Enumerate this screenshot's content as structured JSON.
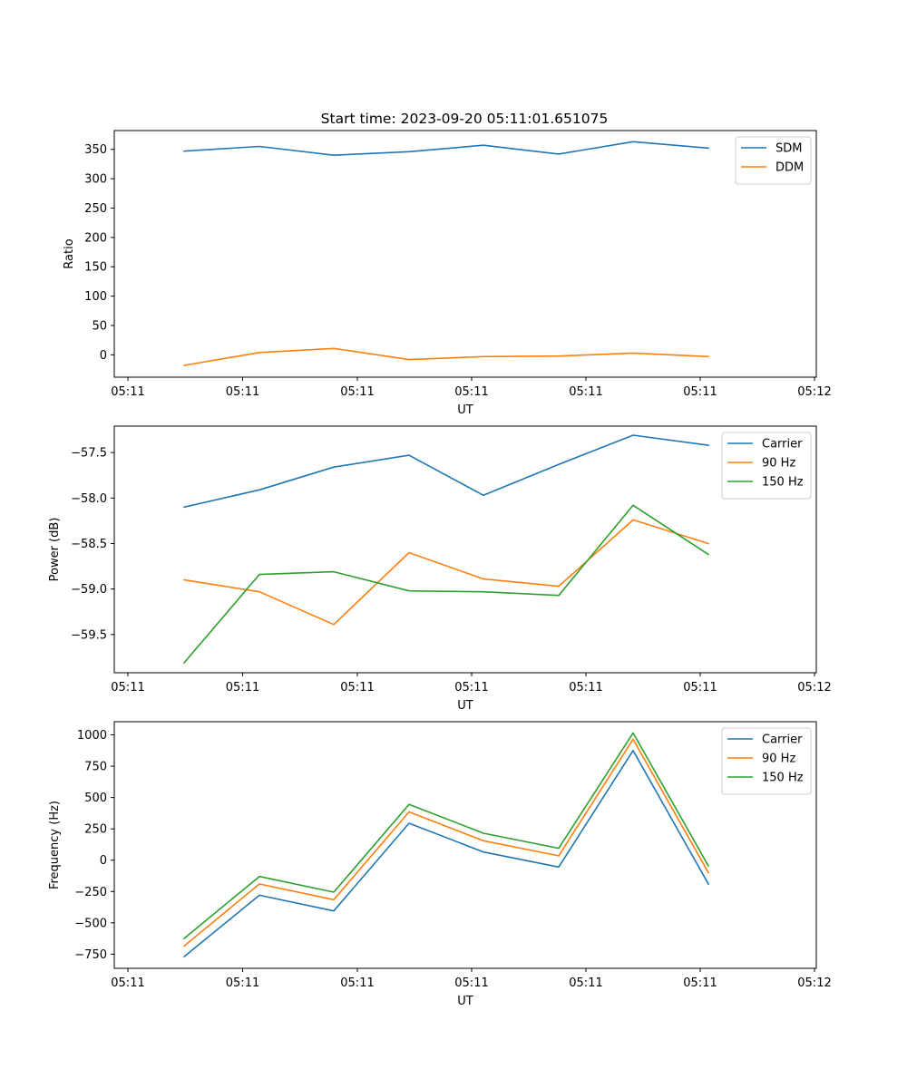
{
  "chart_data": {
    "type": "line",
    "title": "Start time: 2023-09-20 05:11:01.651075",
    "x_ticks": [
      "05:11",
      "05:11",
      "05:11",
      "05:11",
      "05:11",
      "05:11",
      "05:12"
    ],
    "panels": [
      {
        "id": "ratio",
        "xlabel": "UT",
        "ylabel": "Ratio",
        "ylim": [
          -38,
          382
        ],
        "yticks": [
          {
            "value": 0,
            "label": "0"
          },
          {
            "value": 50,
            "label": "50"
          },
          {
            "value": 100,
            "label": "100"
          },
          {
            "value": 150,
            "label": "150"
          },
          {
            "value": 200,
            "label": "200"
          },
          {
            "value": 250,
            "label": "250"
          },
          {
            "value": 300,
            "label": "300"
          },
          {
            "value": 350,
            "label": "350"
          }
        ],
        "legend": "top-right",
        "series": [
          {
            "name": "SDM",
            "color": "#1f77b4",
            "values": [
              347,
              355,
              340,
              346,
              357,
              342,
              363,
              352
            ]
          },
          {
            "name": "DDM",
            "color": "#ff7f0e",
            "values": [
              -18,
              4,
              11,
              -8,
              -3,
              -2,
              3,
              -3
            ]
          }
        ]
      },
      {
        "id": "power",
        "xlabel": "UT",
        "ylabel": "Power (dB)",
        "ylim": [
          -59.92,
          -57.21
        ],
        "yticks": [
          {
            "value": -59.5,
            "label": "−59.5"
          },
          {
            "value": -59.0,
            "label": "−59.0"
          },
          {
            "value": -58.5,
            "label": "−58.5"
          },
          {
            "value": -58.0,
            "label": "−58.0"
          },
          {
            "value": -57.5,
            "label": "−57.5"
          }
        ],
        "legend": "top-right",
        "series": [
          {
            "name": "Carrier",
            "color": "#1f77b4",
            "values": [
              -58.1,
              -57.91,
              -57.66,
              -57.53,
              -57.97,
              -57.63,
              -57.31,
              -57.42
            ]
          },
          {
            "name": "90 Hz",
            "color": "#ff7f0e",
            "values": [
              -58.9,
              -59.03,
              -59.39,
              -58.6,
              -58.89,
              -58.97,
              -58.24,
              -58.5
            ]
          },
          {
            "name": "150 Hz",
            "color": "#2ca02c",
            "values": [
              -59.81,
              -58.84,
              -58.81,
              -59.02,
              -59.03,
              -59.07,
              -58.08,
              -58.62
            ]
          }
        ]
      },
      {
        "id": "frequency",
        "xlabel": "UT",
        "ylabel": "Frequency (Hz)",
        "ylim": [
          -863,
          1105
        ],
        "yticks": [
          {
            "value": -750,
            "label": "−750"
          },
          {
            "value": -500,
            "label": "−500"
          },
          {
            "value": -250,
            "label": "−250"
          },
          {
            "value": 0,
            "label": "0"
          },
          {
            "value": 250,
            "label": "250"
          },
          {
            "value": 500,
            "label": "500"
          },
          {
            "value": 750,
            "label": "750"
          },
          {
            "value": 1000,
            "label": "1000"
          }
        ],
        "legend": "top-right",
        "series": [
          {
            "name": "Carrier",
            "color": "#1f77b4",
            "values": [
              -770,
              -280,
              -405,
              295,
              65,
              -55,
              875,
              -190
            ]
          },
          {
            "name": "90 Hz",
            "color": "#ff7f0e",
            "values": [
              -685,
              -190,
              -315,
              385,
              155,
              35,
              965,
              -100
            ]
          },
          {
            "name": "150 Hz",
            "color": "#2ca02c",
            "values": [
              -625,
              -130,
              -255,
              445,
              215,
              95,
              1015,
              -45
            ]
          }
        ]
      }
    ]
  }
}
